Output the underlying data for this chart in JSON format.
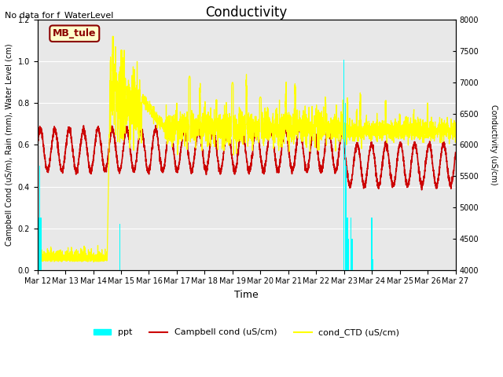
{
  "title": "Conductivity",
  "note": "No data for f_WaterLevel",
  "station_label": "MB_tule",
  "xlabel": "Time",
  "ylabel_left": "Campbell Cond (uS/m), Rain (mm), Water Level (cm)",
  "ylabel_right": "Conductivity (uS/cm)",
  "ylim_left": [
    0.0,
    1.2
  ],
  "ylim_right": [
    4000,
    8000
  ],
  "xlim_hours": [
    0,
    360
  ],
  "bg_color": "#e8e8e8",
  "legend_entries": [
    "ppt",
    "Campbell cond (uS/cm)",
    "cond_CTD (uS/cm)"
  ],
  "xtick_labels": [
    "Mar 12",
    "Mar 13",
    "Mar 14",
    "Mar 15",
    "Mar 16",
    "Mar 17",
    "Mar 18",
    "Mar 19",
    "Mar 20",
    "Mar 21",
    "Mar 22",
    "Mar 23",
    "Mar 24",
    "Mar 25",
    "Mar 26",
    "Mar 27"
  ],
  "xtick_positions": [
    0,
    24,
    48,
    72,
    96,
    120,
    144,
    168,
    192,
    216,
    240,
    264,
    288,
    312,
    336,
    360
  ],
  "ytick_left": [
    0.0,
    0.2,
    0.4,
    0.6,
    0.8,
    1.0,
    1.2
  ],
  "ytick_right": [
    4000,
    4500,
    5000,
    5500,
    6000,
    6500,
    7000,
    7500,
    8000
  ],
  "ppt_times": [
    1,
    2,
    3,
    71,
    264,
    265,
    266,
    267,
    268,
    270,
    271,
    288,
    289
  ],
  "ppt_values": [
    0.25,
    0.5,
    0.25,
    0.22,
    1.01,
    0.8,
    0.5,
    0.25,
    0.15,
    0.25,
    0.15,
    0.25,
    0.05
  ]
}
